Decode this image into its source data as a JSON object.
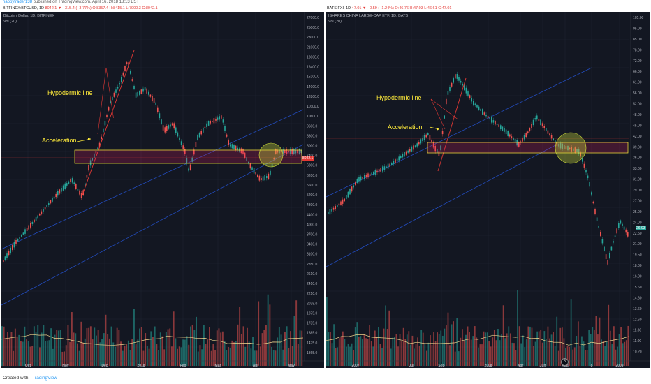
{
  "header": {
    "user": "happytrader138",
    "published": "published on TradingView.com, April 16, 2018 18:13 EST"
  },
  "left": {
    "ticker": "BITFINEX:BTCUSD, 1D",
    "ohlc": "8042.1 ▼ −315.4 (−3.77%)",
    "o": "O:8357.4",
    "h": "H:8415.1",
    "l": "L:7900.3",
    "c": "C:8042.1",
    "title": "Bitcoin / Dollar, 1D, BITFINEX",
    "vol": "Vol (20)",
    "annotations": {
      "hypodermic": "Hypodermic line",
      "acceleration": "Acceleration"
    },
    "price_tag": "8042.1",
    "yaxis": [
      "27000.0",
      "25000.0",
      "23000.0",
      "21000.0",
      "18000.0",
      "16400.0",
      "15200.0",
      "14000.0",
      "12800.0",
      "11600.0",
      "10600.0",
      "9600.0",
      "8800.0",
      "8000.0",
      "7400.0",
      "6800.0",
      "6200.0",
      "5600.0",
      "5200.0",
      "4800.0",
      "4400.0",
      "4000.0",
      "3700.0",
      "3400.0",
      "3100.0",
      "2850.0",
      "2610.0",
      "2410.0",
      "2210.0",
      "2035.0",
      "1875.0",
      "1735.0",
      "1585.0",
      "1475.0",
      "1365.0"
    ],
    "xaxis": [
      "Oct",
      "Nov",
      "Dec",
      "2018",
      "Feb",
      "Mar",
      "Apr",
      "May"
    ]
  },
  "right": {
    "ticker": "BATS:FXI, 1D",
    "ohlc": "47.01 ▼ −0.59 (−1.24%)",
    "o": "O:46.76",
    "h": "H:47.03",
    "l": "L:46.61",
    "c": "C:47.01",
    "title": "ISHARES CHINA LARGE-CAP ETF, 1D, BATS",
    "vol": "Vol (20)",
    "annotations": {
      "hypodermic": "Hypodermic line",
      "acceleration": "Acceleration"
    },
    "price_tag": "26.93",
    "yaxis": [
      "105.00",
      "95.00",
      "85.00",
      "78.00",
      "72.00",
      "66.00",
      "61.00",
      "56.00",
      "52.00",
      "48.00",
      "45.00",
      "42.00",
      "39.00",
      "36.00",
      "33.00",
      "31.00",
      "29.00",
      "27.00",
      "25.00",
      "24.00",
      "22.50",
      "21.00",
      "19.50",
      "18.00",
      "16.80",
      "15.60",
      "14.60",
      "13.60",
      "12.60",
      "11.80",
      "11.00",
      "10.20"
    ],
    "xaxis": [
      "2007",
      "Jul",
      "Sep",
      "2008",
      "Apr",
      "Jun",
      "Aug",
      "8",
      "2009"
    ],
    "badge": "S"
  },
  "footer": {
    "created_with": "Created with",
    "brand": "TradingView"
  },
  "colors": {
    "bg": "#131722",
    "up": "#26a69a",
    "down": "#ef5350",
    "annotation": "#ffeb3b",
    "trend": "#2962ff"
  }
}
